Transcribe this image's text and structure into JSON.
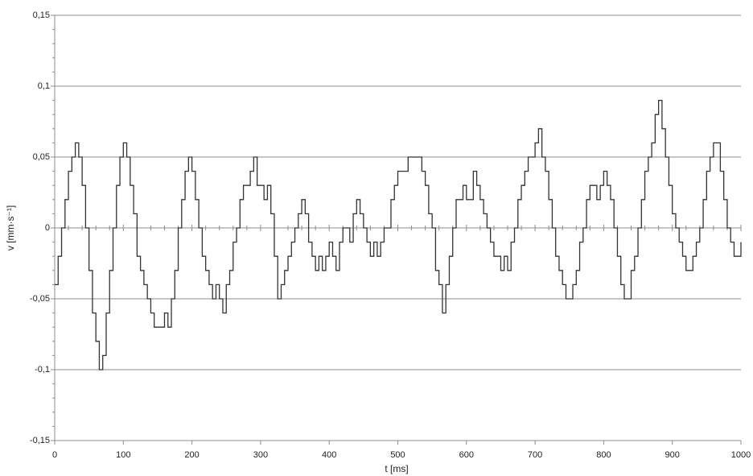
{
  "chart_data": {
    "type": "line",
    "step": true,
    "x_label": "t [ms]",
    "y_label": "v [mm·s⁻¹]",
    "xlim": [
      0,
      1000
    ],
    "xticks": [
      0,
      100,
      200,
      300,
      400,
      500,
      600,
      700,
      800,
      900,
      1000
    ],
    "ylim": [
      -0.15,
      0.15
    ],
    "yticks": [
      {
        "value": 0.15,
        "label": "0,15"
      },
      {
        "value": 0.1,
        "label": "0,1"
      },
      {
        "value": 0.05,
        "label": "0,05"
      },
      0,
      {
        "value": -0.05,
        "label": "-0,05"
      },
      {
        "value": -0.1,
        "label": "-0,1"
      },
      {
        "value": -0.15,
        "label": "-0,15"
      }
    ],
    "grid": true,
    "x": [
      0,
      5,
      10,
      15,
      20,
      25,
      30,
      35,
      40,
      45,
      50,
      55,
      60,
      65,
      70,
      75,
      80,
      85,
      90,
      95,
      100,
      105,
      110,
      115,
      120,
      125,
      130,
      135,
      140,
      145,
      150,
      155,
      160,
      165,
      170,
      175,
      180,
      185,
      190,
      195,
      200,
      205,
      210,
      215,
      220,
      225,
      230,
      235,
      240,
      245,
      250,
      255,
      260,
      265,
      270,
      275,
      280,
      285,
      290,
      295,
      300,
      305,
      310,
      315,
      320,
      325,
      330,
      335,
      340,
      345,
      350,
      355,
      360,
      365,
      370,
      375,
      380,
      385,
      390,
      395,
      400,
      405,
      410,
      415,
      420,
      425,
      430,
      435,
      440,
      445,
      450,
      455,
      460,
      465,
      470,
      475,
      480,
      485,
      490,
      495,
      500,
      505,
      510,
      515,
      520,
      525,
      530,
      535,
      540,
      545,
      550,
      555,
      560,
      565,
      570,
      575,
      580,
      585,
      590,
      595,
      600,
      605,
      610,
      615,
      620,
      625,
      630,
      635,
      640,
      645,
      650,
      655,
      660,
      665,
      670,
      675,
      680,
      685,
      690,
      695,
      700,
      705,
      710,
      715,
      720,
      725,
      730,
      735,
      740,
      745,
      750,
      755,
      760,
      765,
      770,
      775,
      780,
      785,
      790,
      795,
      800,
      805,
      810,
      815,
      820,
      825,
      830,
      835,
      840,
      845,
      850,
      855,
      860,
      865,
      870,
      875,
      880,
      885,
      890,
      895,
      900,
      905,
      910,
      915,
      920,
      925,
      930,
      935,
      940,
      945,
      950,
      955,
      960,
      965,
      970,
      975,
      980,
      985,
      990,
      995,
      1000
    ],
    "series": [
      {
        "color": "#333333",
        "values": [
          -0.04,
          -0.02,
          0,
          0.02,
          0.04,
          0.05,
          0.06,
          0.05,
          0.03,
          0,
          -0.03,
          -0.06,
          -0.08,
          -0.1,
          -0.09,
          -0.06,
          -0.03,
          0,
          0.03,
          0.05,
          0.06,
          0.05,
          0.03,
          0.01,
          -0.02,
          -0.03,
          -0.04,
          -0.05,
          -0.06,
          -0.07,
          -0.07,
          -0.07,
          -0.06,
          -0.07,
          -0.05,
          -0.03,
          0,
          0.02,
          0.04,
          0.05,
          0.04,
          0.02,
          0,
          -0.02,
          -0.03,
          -0.04,
          -0.05,
          -0.04,
          -0.05,
          -0.06,
          -0.04,
          -0.03,
          -0.01,
          0,
          0.02,
          0.03,
          0.03,
          0.04,
          0.05,
          0.03,
          0.03,
          0.02,
          0.03,
          0.01,
          -0.02,
          -0.05,
          -0.04,
          -0.03,
          -0.02,
          -0.01,
          0,
          0.01,
          0.02,
          0.01,
          -0.01,
          -0.02,
          -0.03,
          -0.02,
          -0.03,
          -0.02,
          -0.01,
          -0.02,
          -0.03,
          -0.01,
          0,
          0,
          -0.01,
          0.01,
          0.02,
          0.01,
          0,
          -0.01,
          -0.02,
          -0.01,
          -0.02,
          -0.01,
          0,
          0,
          0.02,
          0.03,
          0.04,
          0.04,
          0.04,
          0.05,
          0.05,
          0.05,
          0.05,
          0.04,
          0.03,
          0.01,
          0,
          -0.03,
          -0.04,
          -0.06,
          -0.04,
          -0.02,
          0,
          0.02,
          0.02,
          0.03,
          0.02,
          0.02,
          0.04,
          0.03,
          0.02,
          0.01,
          0,
          -0.01,
          -0.02,
          -0.02,
          -0.03,
          -0.02,
          -0.03,
          -0.01,
          0,
          0.02,
          0.03,
          0.04,
          0.05,
          0.05,
          0.06,
          0.07,
          0.05,
          0.04,
          0.02,
          0,
          -0.02,
          -0.03,
          -0.04,
          -0.05,
          -0.05,
          -0.04,
          -0.03,
          -0.01,
          0,
          0.02,
          0.03,
          0.03,
          0.02,
          0.03,
          0.04,
          0.03,
          0.02,
          0,
          -0.02,
          -0.04,
          -0.05,
          -0.05,
          -0.03,
          -0.02,
          0,
          0.02,
          0.04,
          0.05,
          0.06,
          0.08,
          0.09,
          0.07,
          0.05,
          0.03,
          0.01,
          0,
          -0.01,
          -0.02,
          -0.03,
          -0.03,
          -0.02,
          -0.01,
          0,
          0.02,
          0.04,
          0.05,
          0.06,
          0.06,
          0.04,
          0.02,
          0,
          -0.01,
          -0.02,
          -0.02,
          -0.01
        ]
      }
    ]
  }
}
